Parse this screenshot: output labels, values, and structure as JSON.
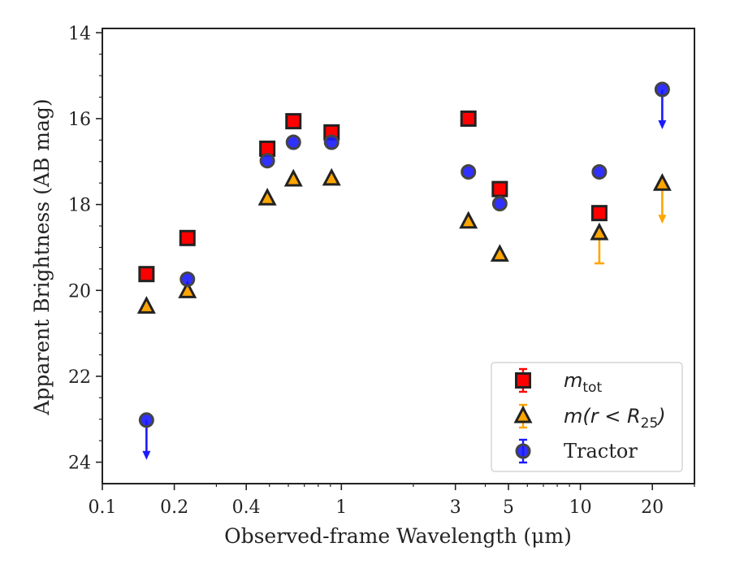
{
  "chart_data": {
    "type": "scatter",
    "xlabel": "Observed-frame Wavelength (μm)",
    "ylabel": "Apparent Brightness (AB mag)",
    "xscale": "log",
    "xlim": [
      0.1,
      30
    ],
    "ylim": [
      24.5,
      13.9
    ],
    "y_inverted": true,
    "grid": false,
    "legend_placement": "bottom-right",
    "xticks": [
      {
        "value": 0.1,
        "label": "0.1"
      },
      {
        "value": 0.2,
        "label": "0.2"
      },
      {
        "value": 0.4,
        "label": "0.4"
      },
      {
        "value": 1,
        "label": "1"
      },
      {
        "value": 3,
        "label": "3"
      },
      {
        "value": 5,
        "label": "5"
      },
      {
        "value": 10,
        "label": "10"
      },
      {
        "value": 20,
        "label": "20"
      }
    ],
    "yticks": [
      {
        "value": 14,
        "label": "14"
      },
      {
        "value": 16,
        "label": "16"
      },
      {
        "value": 18,
        "label": "18"
      },
      {
        "value": 20,
        "label": "20"
      },
      {
        "value": 22,
        "label": "22"
      },
      {
        "value": 24,
        "label": "24"
      }
    ],
    "series": [
      {
        "key": "mtot",
        "legend_main": "m",
        "legend_sub": "tot",
        "marker": "square",
        "color": "#ff0000",
        "edge": "#222222",
        "points": [
          {
            "x": 0.153,
            "y": 19.62
          },
          {
            "x": 0.227,
            "y": 18.78
          },
          {
            "x": 0.49,
            "y": 16.7
          },
          {
            "x": 0.63,
            "y": 16.06
          },
          {
            "x": 0.91,
            "y": 16.32
          },
          {
            "x": 3.4,
            "y": 16.0
          },
          {
            "x": 4.6,
            "y": 17.64
          },
          {
            "x": 12.0,
            "y": 18.2
          }
        ]
      },
      {
        "key": "mr25",
        "legend_main": "m(r < R",
        "legend_sub": "25",
        "legend_end": ")",
        "marker": "triangle",
        "color": "#ffa500",
        "edge": "#222222",
        "points": [
          {
            "x": 0.153,
            "y": 20.38
          },
          {
            "x": 0.227,
            "y": 20.02
          },
          {
            "x": 0.49,
            "y": 17.86
          },
          {
            "x": 0.63,
            "y": 17.42
          },
          {
            "x": 0.91,
            "y": 17.4
          },
          {
            "x": 3.4,
            "y": 18.4
          },
          {
            "x": 4.6,
            "y": 19.17
          },
          {
            "x": 12.0,
            "y": 18.67,
            "err_lo": 0.7
          },
          {
            "x": 22.0,
            "y": 17.52,
            "upper_limit": true
          }
        ]
      },
      {
        "key": "tractor",
        "legend_main": "Tractor",
        "marker": "circle",
        "color": "#1a1aff",
        "edge": "#444444",
        "points": [
          {
            "x": 0.153,
            "y": 23.02,
            "upper_limit": true
          },
          {
            "x": 0.227,
            "y": 19.74
          },
          {
            "x": 0.49,
            "y": 16.98
          },
          {
            "x": 0.63,
            "y": 16.55
          },
          {
            "x": 0.91,
            "y": 16.55
          },
          {
            "x": 3.4,
            "y": 17.24
          },
          {
            "x": 4.6,
            "y": 17.98
          },
          {
            "x": 12.0,
            "y": 17.24
          },
          {
            "x": 22.0,
            "y": 15.32,
            "upper_limit": true
          }
        ]
      }
    ]
  }
}
